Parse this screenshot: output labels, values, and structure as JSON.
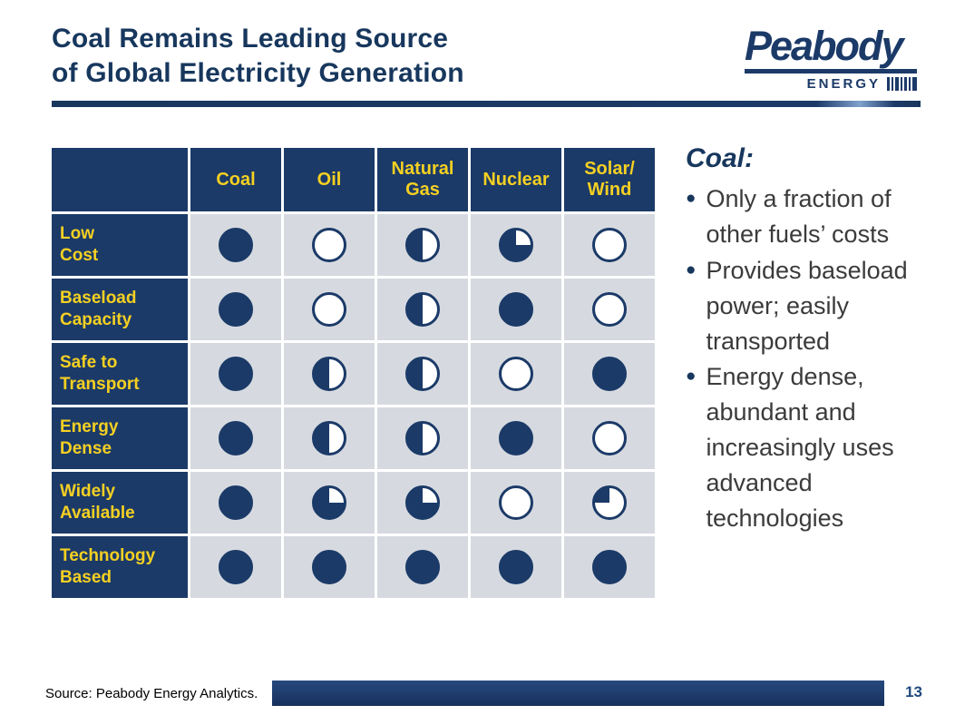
{
  "slide": {
    "title": "Coal Remains Leading Source\nof Global Electricity Generation",
    "source": "Source: Peabody Energy Analytics.",
    "page_number": "13"
  },
  "logo": {
    "brand": "Peabody",
    "sub": "ENERGY"
  },
  "colors": {
    "navy": "#1B3A68",
    "title_navy": "#17375D",
    "yellow": "#F5D022",
    "cell_gray": "#D6DAE0",
    "page_number_blue": "#1F497D"
  },
  "chart_data": {
    "type": "table",
    "title": "Fuel attribute comparison (Harvey ball ratings, 0 = empty circle, 1 = full circle)",
    "columns": [
      "Coal",
      "Oil",
      "Natural\nGas",
      "Nuclear",
      "Solar/\nWind"
    ],
    "rows": [
      "Low\nCost",
      "Baseload\nCapacity",
      "Safe to\nTransport",
      "Energy\nDense",
      "Widely\nAvailable",
      "Technology\nBased"
    ],
    "ratings": [
      [
        1,
        0,
        0.5,
        0.75,
        0
      ],
      [
        1,
        0,
        0.5,
        1,
        0
      ],
      [
        1,
        0.5,
        0.5,
        0,
        1
      ],
      [
        1,
        0.5,
        0.5,
        1,
        0
      ],
      [
        1,
        0.75,
        0.75,
        0,
        0.25
      ],
      [
        1,
        1,
        1,
        1,
        1
      ]
    ]
  },
  "sidebar": {
    "heading": "Coal:",
    "bullets": [
      "Only a fraction of other fuels’ costs",
      "Provides baseload power; easily transported",
      "Energy dense, abundant and increasingly uses advanced technologies"
    ]
  }
}
